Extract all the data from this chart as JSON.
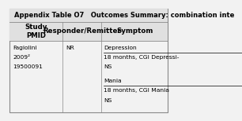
{
  "title": "Appendix Table O7   Outcomes Summary: combination inte",
  "title_fontsize": 6.0,
  "header_bg": "#e0e0e0",
  "body_bg": "#f2f2f2",
  "border_color": "#888888",
  "col_headers": [
    "Study\nPMID",
    "Responder/Remitter",
    "Symptom"
  ],
  "header_fontsize": 6.2,
  "body_fontsize": 5.4,
  "study_lines": [
    "Fagiolini",
    "2009²",
    "19500091"
  ],
  "responder_text": "NR",
  "symptom_lines": [
    {
      "text": "Depression",
      "underline": true
    },
    {
      "text": "18 months, CGI Depressi-",
      "underline": false
    },
    {
      "text": "NS",
      "underline": false
    },
    {
      "text": "",
      "underline": false
    },
    {
      "text": "Mania",
      "underline": true
    },
    {
      "text": "18 months, CGI Mania",
      "underline": false
    },
    {
      "text": "NS",
      "underline": false
    }
  ]
}
